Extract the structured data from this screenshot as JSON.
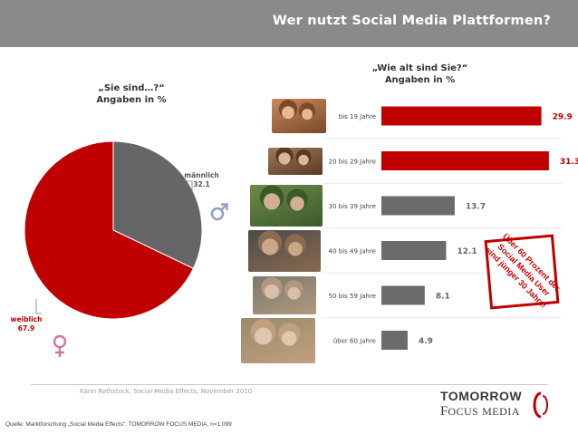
{
  "header": {
    "title": "Wer nutzt Social Media Plattformen?"
  },
  "gender": {
    "caption_line1": "„Sie sind…?“",
    "caption_line2": "Angaben in %",
    "male_label": "männlich",
    "male_value": "32.1",
    "female_label": "weiblich",
    "female_value": "67.9"
  },
  "age": {
    "caption_line1": "„Wie alt sind Sie?“",
    "caption_line2": "Angaben in %",
    "badge_lines": [
      "Über 60 Prozent der",
      "Social Media User",
      "sind jünger 30 Jahre!"
    ]
  },
  "footer": {
    "author": "Karin Rothstock, Social Media Effects, November 2010",
    "source": "Quelle: Marktforschung „Social Media Effects“, TOMORROW FOCUS MEDIA, n=1.099",
    "logo_line1": "TOMORROW",
    "logo_line2_a": "F",
    "logo_line2_b": "OCUS",
    "logo_line2_c": "MEDIA"
  },
  "colors": {
    "red": "#c00000",
    "gray": "#6b6b6b",
    "header": "#8a8a8a"
  },
  "icons": [
    "male-symbol-icon",
    "female-symbol-icon",
    "photo-thumbnails"
  ],
  "chart_data": [
    {
      "type": "pie",
      "categories": [
        "männlich",
        "weiblich"
      ],
      "values": [
        32.1,
        67.9
      ],
      "colors": [
        "#666666",
        "#c00000"
      ],
      "title": "„Sie sind…?“ Angaben in %"
    },
    {
      "type": "bar",
      "orientation": "horizontal",
      "categories": [
        "bis 19 Jahre",
        "20 bis 29 Jahre",
        "30 bis 39 Jahre",
        "40 bis 49 Jahre",
        "50 bis 59 Jahre",
        "über 60 Jahre"
      ],
      "values": [
        29.9,
        31.3,
        13.7,
        12.1,
        8.1,
        4.9
      ],
      "colors": [
        "#c00000",
        "#c00000",
        "#6b6b6b",
        "#6b6b6b",
        "#6b6b6b",
        "#6b6b6b"
      ],
      "title": "„Wie alt sind Sie?“ Angaben in %",
      "xlim": [
        0,
        32
      ]
    }
  ]
}
